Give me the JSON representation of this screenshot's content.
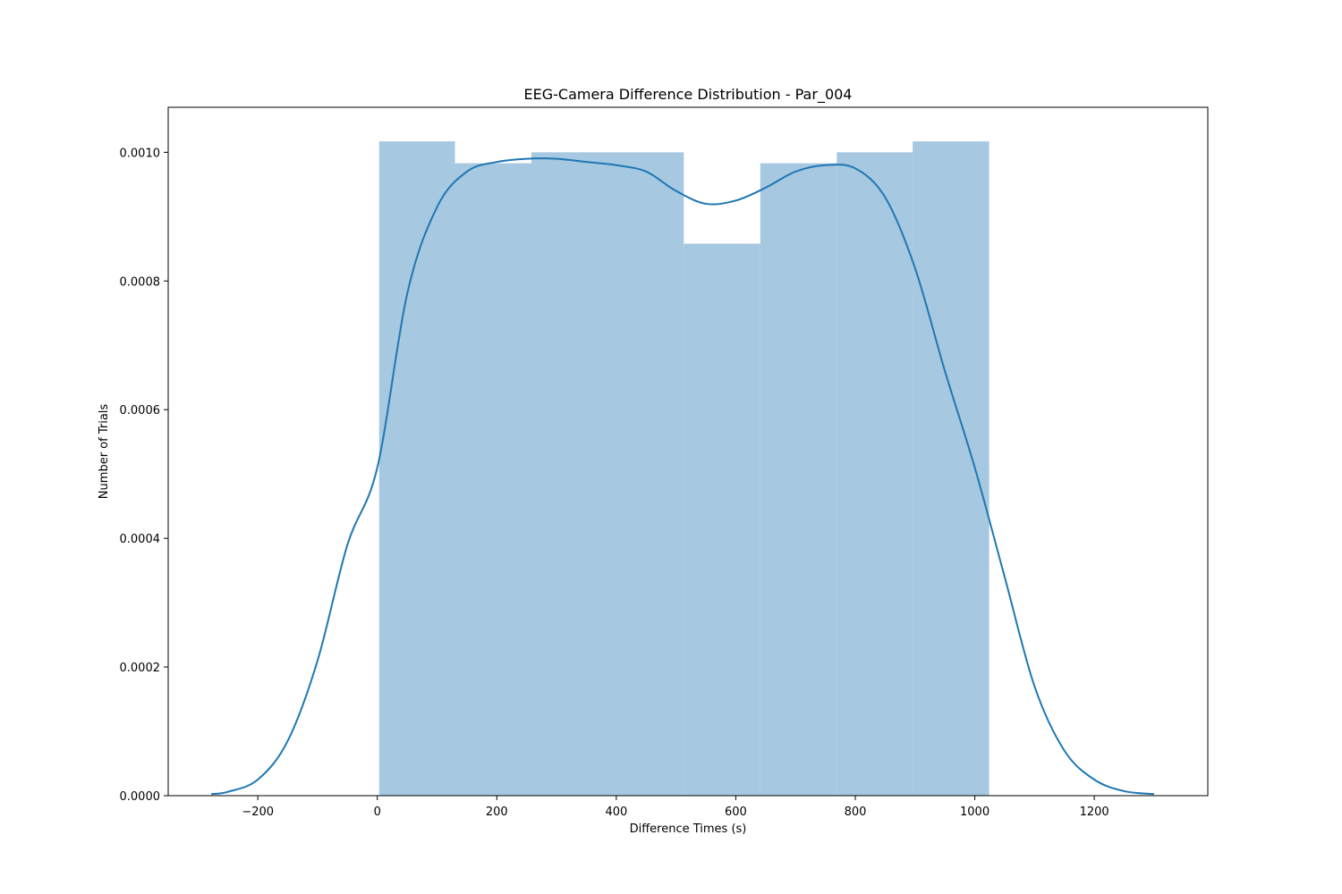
{
  "chart_data": {
    "type": "histogram",
    "title": "EEG-Camera Difference Distribution - Par_004",
    "xlabel": "Difference Times (s)",
    "ylabel": "Number of Trials",
    "xlim": [
      -350,
      1390
    ],
    "ylim": [
      0,
      0.00107
    ],
    "grid": false,
    "xticks": [
      -200,
      0,
      200,
      400,
      600,
      800,
      1000,
      1200
    ],
    "xtick_labels": [
      "−200",
      "0",
      "200",
      "400",
      "600",
      "800",
      "1000",
      "1200"
    ],
    "yticks": [
      0,
      0.0002,
      0.0004,
      0.0006,
      0.0008,
      0.001
    ],
    "ytick_labels": [
      "0.0000",
      "0.0002",
      "0.0004",
      "0.0006",
      "0.0008",
      "0.0010"
    ],
    "colors": {
      "bars": "#a6c8e0",
      "kde": "#1f77b4"
    },
    "bins": [
      {
        "x0": 3,
        "x1": 130,
        "value": 0.001017
      },
      {
        "x0": 130,
        "x1": 258,
        "value": 0.000983
      },
      {
        "x0": 258,
        "x1": 386,
        "value": 0.001
      },
      {
        "x0": 386,
        "x1": 513,
        "value": 0.001
      },
      {
        "x0": 513,
        "x1": 641,
        "value": 0.000858
      },
      {
        "x0": 641,
        "x1": 769,
        "value": 0.000983
      },
      {
        "x0": 769,
        "x1": 896,
        "value": 0.001
      },
      {
        "x0": 896,
        "x1": 1024,
        "value": 0.001017
      }
    ],
    "kde": {
      "x": [
        -278,
        -250,
        -200,
        -150,
        -100,
        -50,
        0,
        50,
        100,
        150,
        200,
        250,
        300,
        350,
        400,
        450,
        500,
        550,
        600,
        650,
        700,
        750,
        800,
        850,
        900,
        950,
        1000,
        1050,
        1100,
        1150,
        1200,
        1250,
        1300
      ],
      "y": [
        2.5e-06,
        6e-06,
        2.5e-05,
        8.5e-05,
        0.00021,
        0.00039,
        0.00051,
        0.00078,
        0.000915,
        0.00097,
        0.000985,
        0.00099,
        0.00099,
        0.000985,
        0.00098,
        0.00097,
        0.00094,
        0.00092,
        0.000925,
        0.000945,
        0.00097,
        0.00098,
        0.000975,
        0.00093,
        0.00082,
        0.00066,
        0.00051,
        0.00034,
        0.00017,
        7e-05,
        2.5e-05,
        7e-06,
        2.5e-06
      ]
    }
  }
}
